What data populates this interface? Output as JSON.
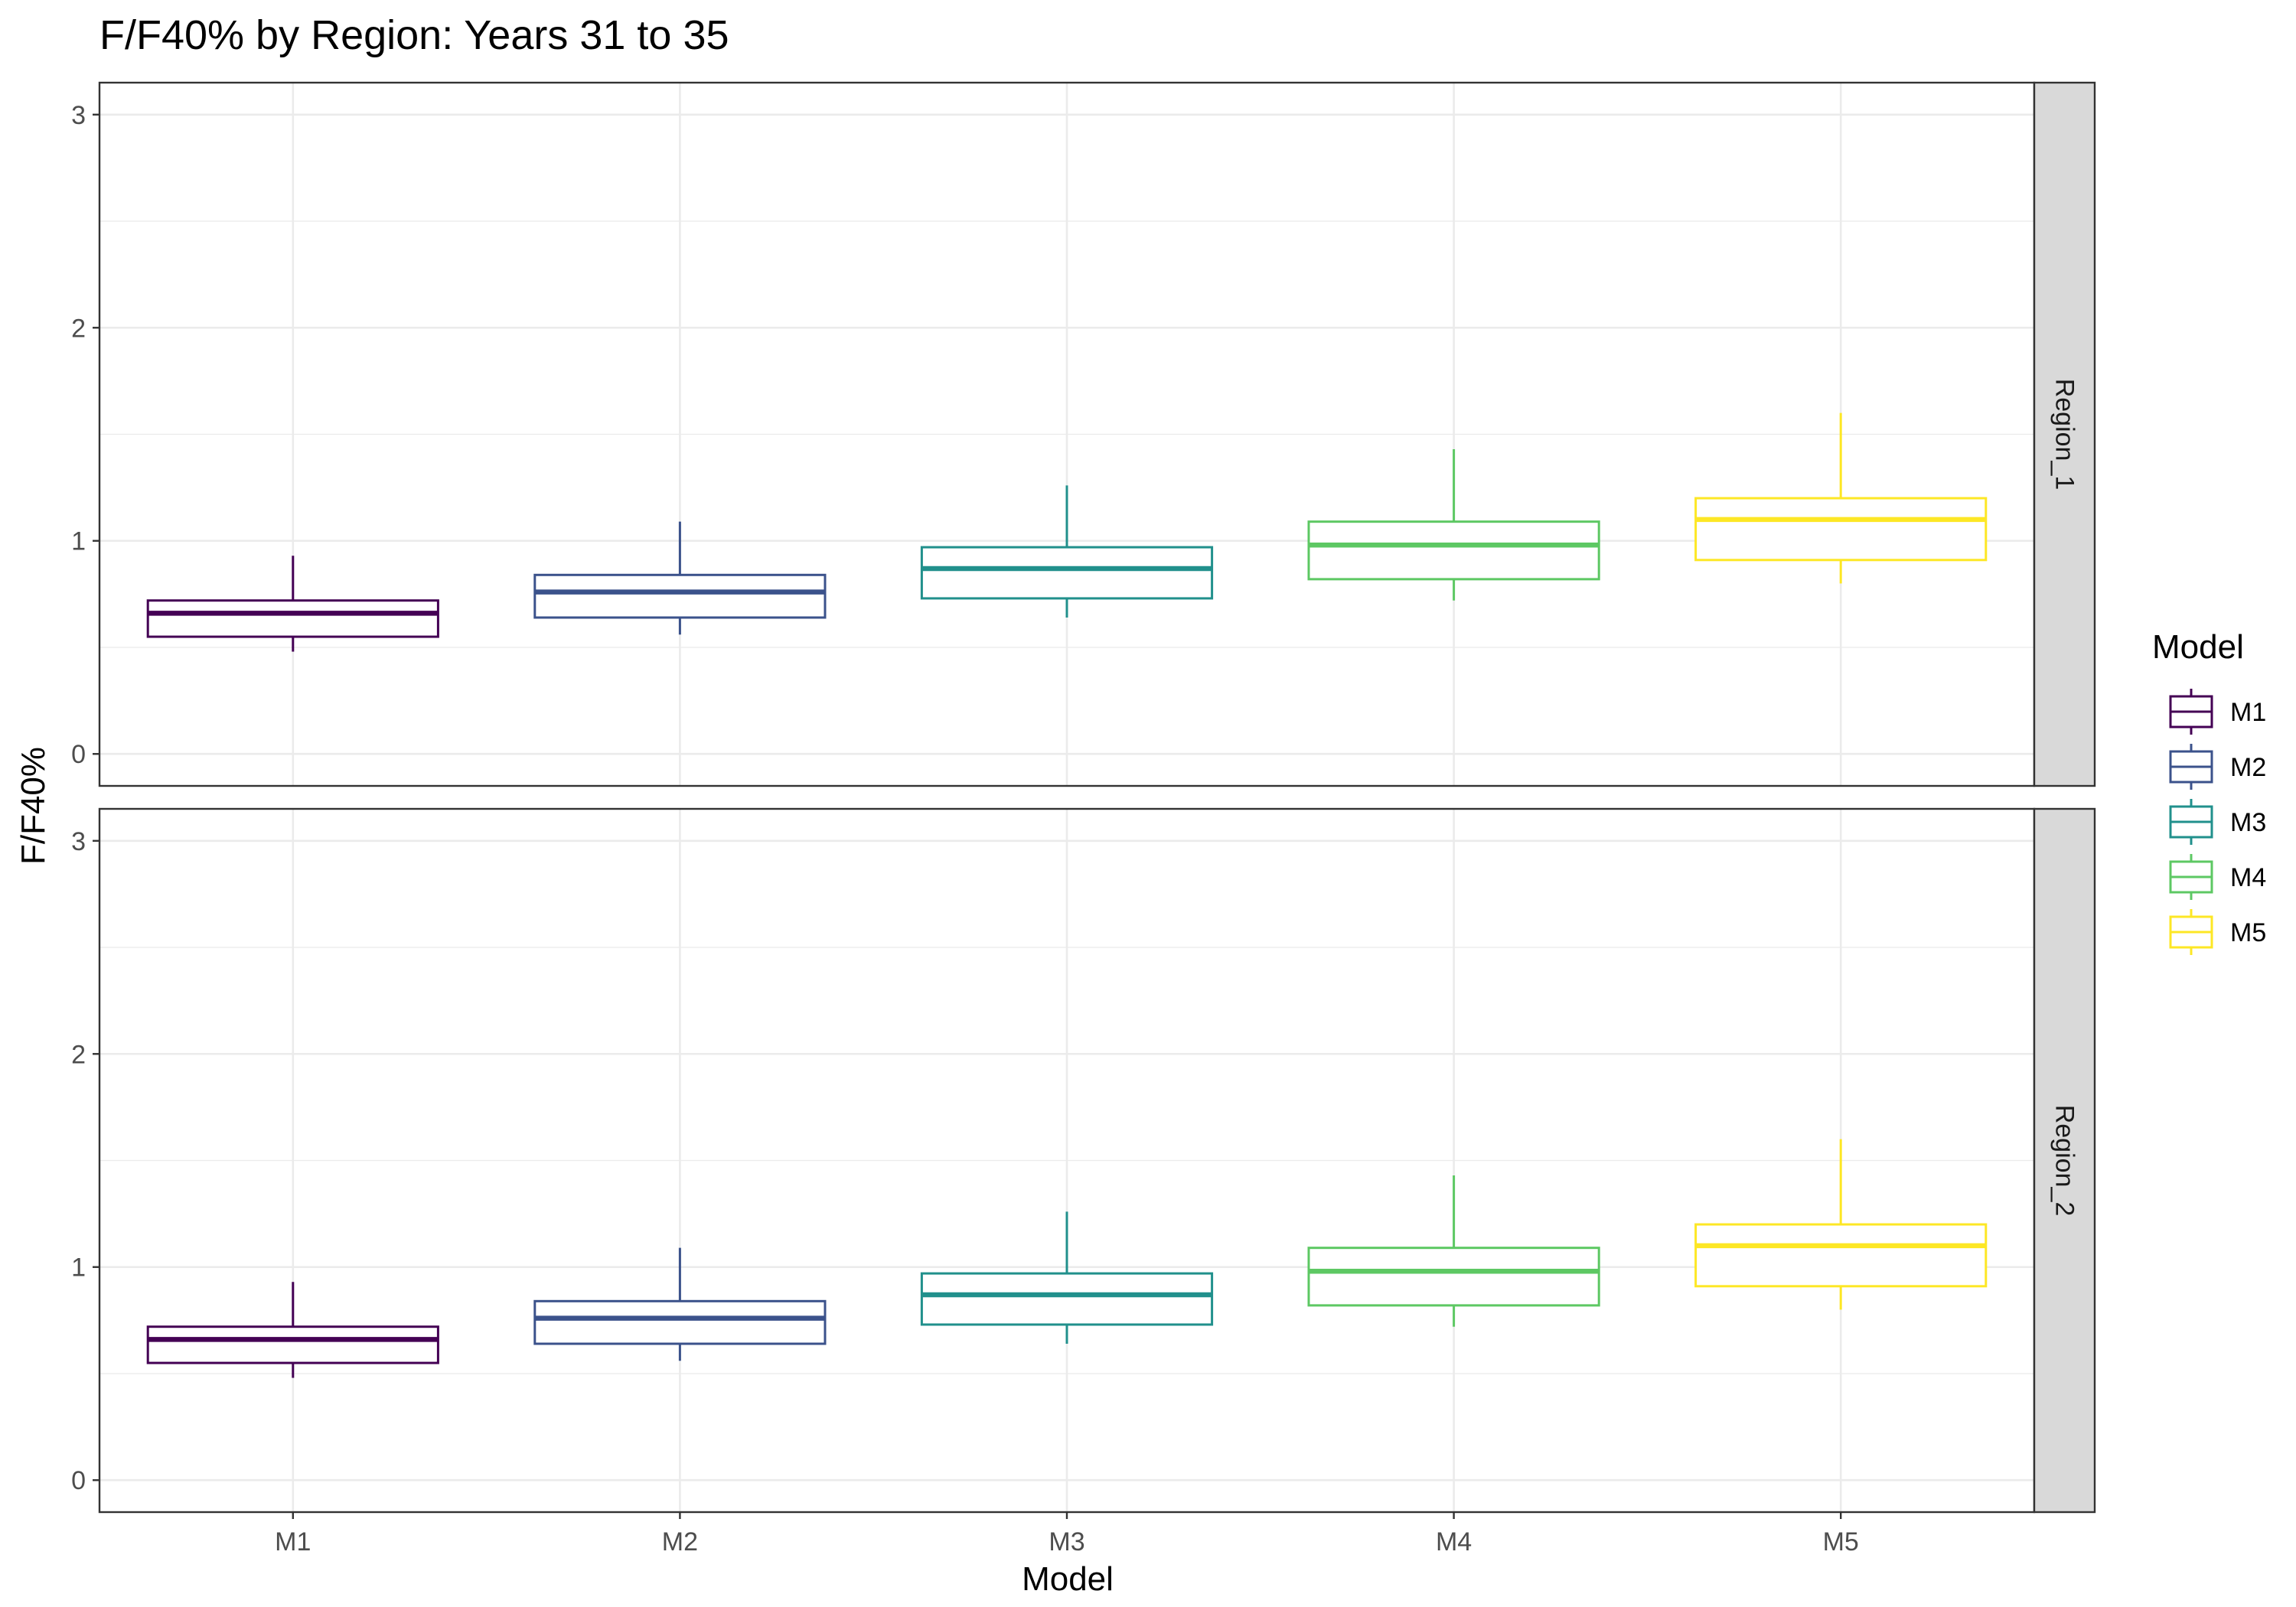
{
  "chart_data": {
    "type": "boxplot",
    "title": "F/F40% by Region: Years 31 to 35",
    "xlabel": "Model",
    "ylabel": "F/F40%",
    "categories": [
      "M1",
      "M2",
      "M3",
      "M4",
      "M5"
    ],
    "ylim": [
      -0.15,
      3.15
    ],
    "yticks": [
      "0",
      "1",
      "2",
      "3"
    ],
    "grid": true,
    "legend": {
      "title": "Model",
      "placement": "right",
      "entries": [
        "M1",
        "M2",
        "M3",
        "M4",
        "M5"
      ]
    },
    "colors": {
      "M1": "#440154",
      "M2": "#3b528b",
      "M3": "#21908c",
      "M4": "#5dc863",
      "M5": "#fde725"
    },
    "panels": [
      {
        "strip": "Region_1",
        "boxes": [
          {
            "model": "M1",
            "min": 0.48,
            "q1": 0.55,
            "median": 0.66,
            "q3": 0.72,
            "max": 0.93
          },
          {
            "model": "M2",
            "min": 0.56,
            "q1": 0.64,
            "median": 0.76,
            "q3": 0.84,
            "max": 1.09
          },
          {
            "model": "M3",
            "min": 0.64,
            "q1": 0.73,
            "median": 0.87,
            "q3": 0.97,
            "max": 1.26
          },
          {
            "model": "M4",
            "min": 0.72,
            "q1": 0.82,
            "median": 0.98,
            "q3": 1.09,
            "max": 1.43
          },
          {
            "model": "M5",
            "min": 0.8,
            "q1": 0.91,
            "median": 1.1,
            "q3": 1.2,
            "max": 1.6
          }
        ]
      },
      {
        "strip": "Region_2",
        "boxes": [
          {
            "model": "M1",
            "min": 0.48,
            "q1": 0.55,
            "median": 0.66,
            "q3": 0.72,
            "max": 0.93
          },
          {
            "model": "M2",
            "min": 0.56,
            "q1": 0.64,
            "median": 0.76,
            "q3": 0.84,
            "max": 1.09
          },
          {
            "model": "M3",
            "min": 0.64,
            "q1": 0.73,
            "median": 0.87,
            "q3": 0.97,
            "max": 1.26
          },
          {
            "model": "M4",
            "min": 0.72,
            "q1": 0.82,
            "median": 0.98,
            "q3": 1.09,
            "max": 1.43
          },
          {
            "model": "M5",
            "min": 0.8,
            "q1": 0.91,
            "median": 1.1,
            "q3": 1.2,
            "max": 1.6
          }
        ]
      }
    ]
  }
}
